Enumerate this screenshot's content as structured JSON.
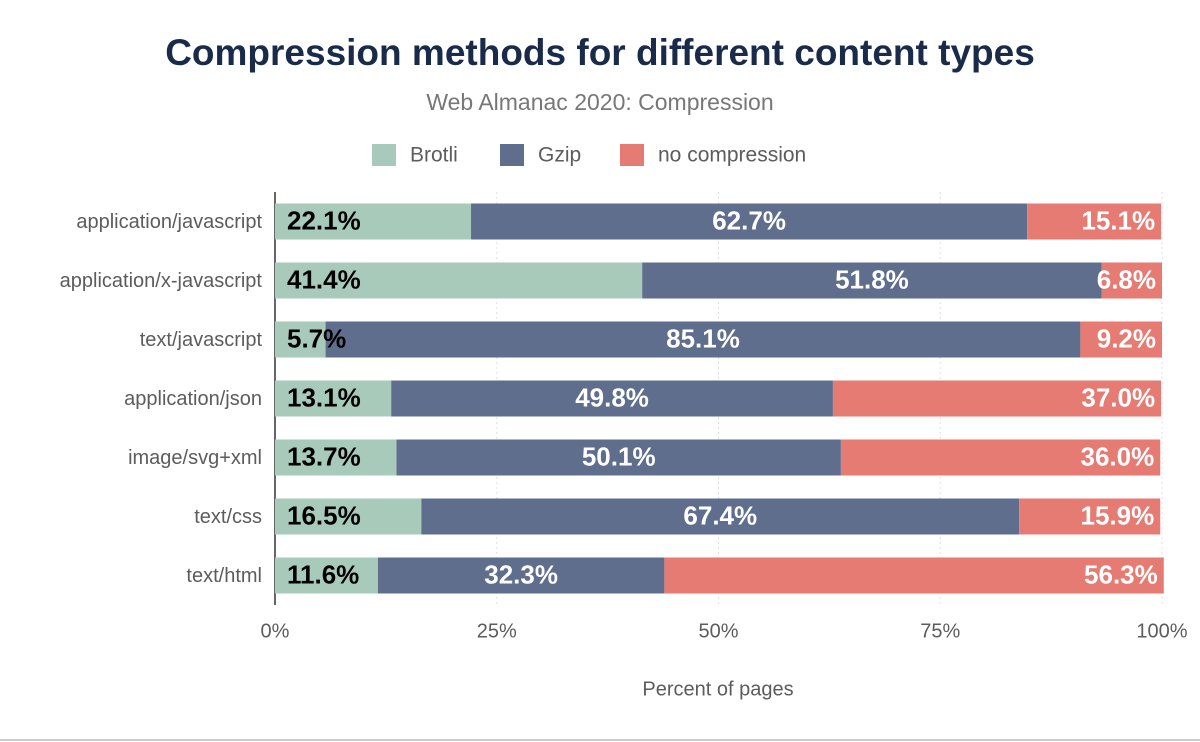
{
  "chart_data": {
    "type": "stacked-bar-horizontal",
    "title": "Compression methods for different content types",
    "subtitle": "Web Almanac 2020: Compression",
    "x_label": "Percent of pages",
    "categories": [
      "application/javascript",
      "application/x-javascript",
      "text/javascript",
      "application/json",
      "image/svg+xml",
      "text/css",
      "text/html"
    ],
    "series": [
      {
        "name": "Brotli",
        "color": "#a8cabb",
        "values": [
          22.1,
          41.4,
          5.7,
          13.1,
          13.7,
          16.5,
          11.6
        ],
        "value_labels": [
          "22.1%",
          "41.4%",
          "5.7%",
          "13.1%",
          "13.7%",
          "16.5%",
          "11.6%"
        ]
      },
      {
        "name": "Gzip",
        "color": "#5f6e8c",
        "values": [
          62.7,
          51.8,
          85.1,
          49.8,
          50.1,
          67.4,
          32.3
        ],
        "value_labels": [
          "62.7%",
          "51.8%",
          "85.1%",
          "49.8%",
          "50.1%",
          "67.4%",
          "32.3%"
        ]
      },
      {
        "name": "no compression",
        "color": "#e57b72",
        "values": [
          15.1,
          6.8,
          9.2,
          37.0,
          36.0,
          15.9,
          56.3
        ],
        "value_labels": [
          "15.1%",
          "6.8%",
          "9.2%",
          "37.0%",
          "36.0%",
          "15.9%",
          "56.3%"
        ]
      }
    ],
    "xlim": [
      0,
      100
    ],
    "xticks": [
      {
        "value": 0,
        "label": "0%"
      },
      {
        "value": 25,
        "label": "25%"
      },
      {
        "value": 50,
        "label": "50%"
      },
      {
        "value": 75,
        "label": "75%"
      },
      {
        "value": 100,
        "label": "100%"
      }
    ],
    "grid": true
  }
}
